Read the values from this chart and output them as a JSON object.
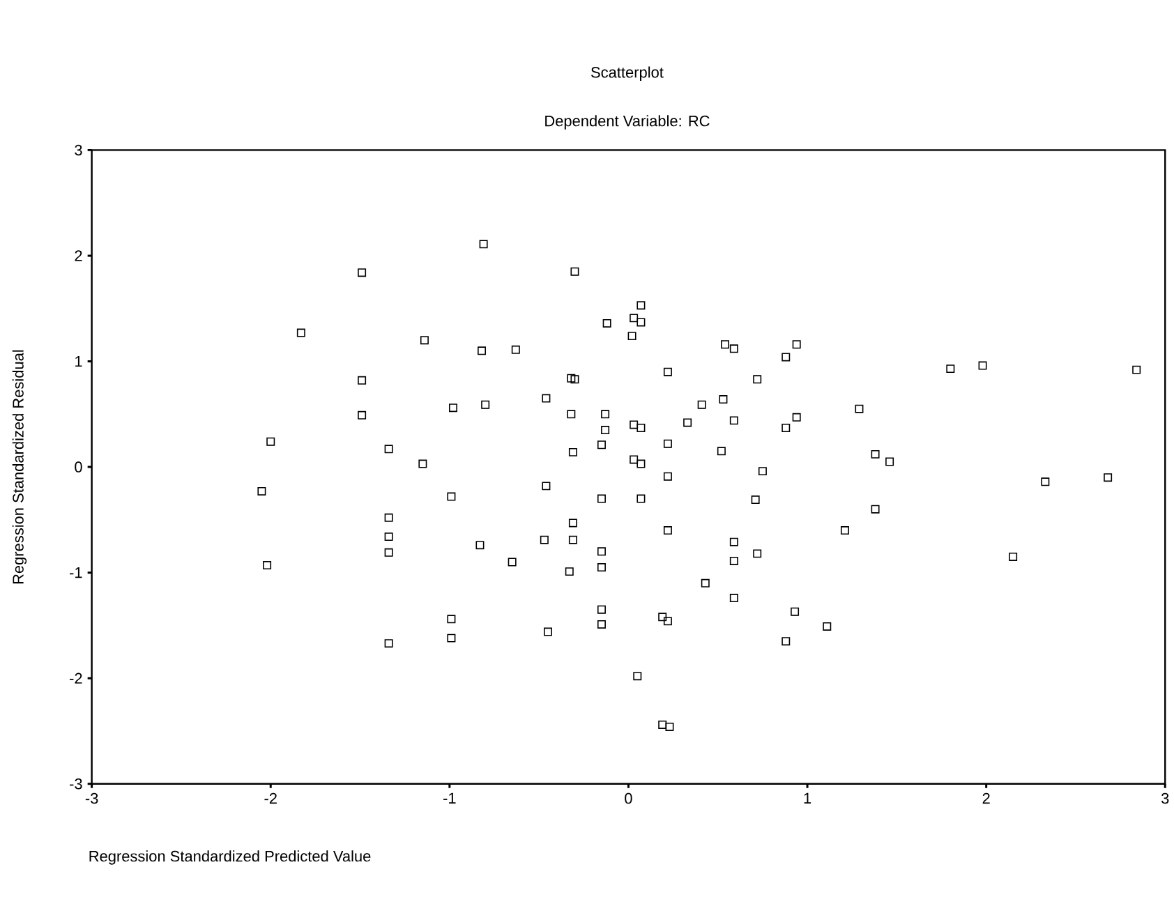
{
  "chart_data": {
    "type": "scatter",
    "title": "Scatterplot",
    "subtitle": "Dependent Variable: RC",
    "xlabel": "Regression Standardized Predicted Value",
    "ylabel": "Regression Standardized Residual",
    "xlim": [
      -3,
      3
    ],
    "ylim": [
      -3,
      3
    ],
    "xticks": [
      -3,
      -2,
      -1,
      0,
      1,
      2,
      3
    ],
    "yticks": [
      -3,
      -2,
      -1,
      0,
      1,
      2,
      3
    ],
    "grid": false,
    "marker": "square",
    "color": "#000000",
    "x": [
      -1.49,
      -0.81,
      -1.83,
      -1.14,
      -0.82,
      -0.63,
      -1.49,
      -1.49,
      -2.0,
      -0.98,
      -0.8,
      -0.46,
      -0.32,
      -0.3,
      -0.32,
      -1.34,
      -1.15,
      -0.99,
      -2.05,
      -2.02,
      -1.34,
      -1.34,
      -1.34,
      -0.83,
      -0.65,
      -0.46,
      -0.47,
      -0.31,
      -0.31,
      -0.33,
      -1.34,
      -0.99,
      -0.99,
      -0.45,
      -0.15,
      -0.15,
      -0.15,
      -0.15,
      -0.3,
      -0.12,
      0.03,
      0.07,
      0.07,
      0.02,
      0.22,
      -0.13,
      -0.13,
      -0.15,
      -0.31,
      0.03,
      0.07,
      0.03,
      0.07,
      0.22,
      0.22,
      -0.15,
      0.07,
      0.22,
      0.05,
      0.19,
      0.22,
      0.19,
      0.23,
      0.33,
      0.41,
      0.53,
      0.54,
      0.59,
      0.72,
      0.52,
      0.59,
      0.75,
      0.71,
      0.59,
      0.59,
      0.72,
      0.43,
      0.59,
      0.88,
      0.94,
      0.88,
      0.94,
      0.93,
      0.88,
      1.11,
      1.21,
      1.29,
      1.38,
      1.46,
      1.38,
      1.8,
      1.98,
      2.15,
      2.33,
      2.68,
      2.84
    ],
    "values": [
      1.84,
      2.11,
      1.27,
      1.2,
      1.1,
      1.11,
      0.82,
      0.49,
      0.24,
      0.56,
      0.59,
      0.65,
      0.84,
      0.83,
      0.5,
      0.17,
      0.03,
      -0.28,
      -0.23,
      -0.93,
      -0.48,
      -0.66,
      -0.81,
      -0.74,
      -0.9,
      -0.18,
      -0.69,
      -0.53,
      -0.69,
      -0.99,
      -1.67,
      -1.44,
      -1.62,
      -1.56,
      -0.8,
      -0.95,
      -1.35,
      -1.49,
      1.85,
      1.36,
      1.41,
      1.37,
      1.53,
      1.24,
      0.9,
      0.5,
      0.35,
      0.21,
      0.14,
      0.4,
      0.37,
      0.07,
      0.03,
      0.22,
      -0.09,
      -0.3,
      -0.3,
      -0.6,
      -1.98,
      -1.42,
      -1.46,
      -2.44,
      -2.46,
      0.42,
      0.59,
      0.64,
      1.16,
      1.12,
      0.83,
      0.15,
      0.44,
      -0.04,
      -0.31,
      -0.71,
      -0.89,
      -0.82,
      -1.1,
      -1.24,
      1.04,
      1.16,
      0.37,
      0.47,
      -1.37,
      -1.65,
      -1.51,
      -0.6,
      0.55,
      0.12,
      0.05,
      -0.4,
      0.93,
      0.96,
      -0.85,
      -0.14,
      -0.1,
      0.92
    ]
  }
}
